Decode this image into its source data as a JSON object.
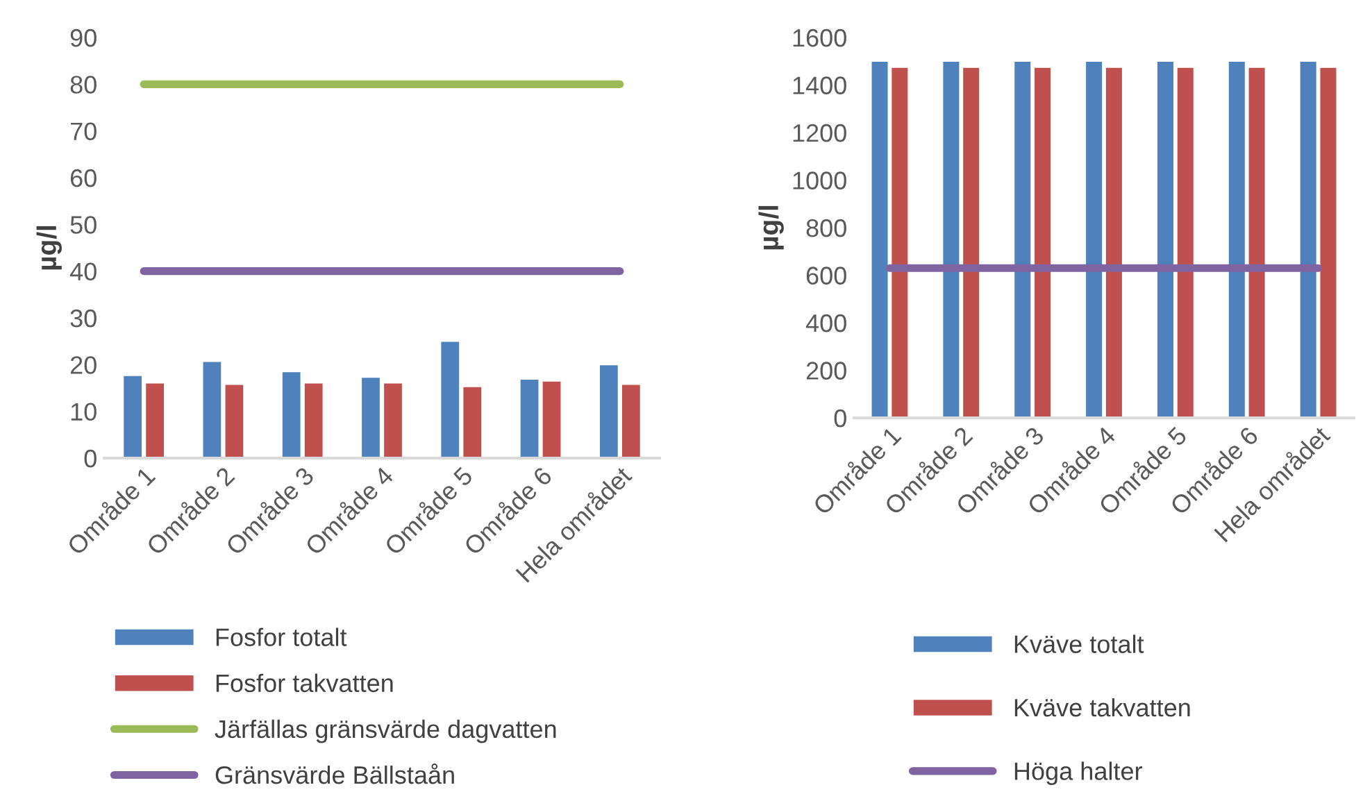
{
  "chart_data": [
    {
      "type": "bar",
      "ylabel": "µg/l",
      "categories": [
        "Område 1",
        "Område 2",
        "Område 3",
        "Område 4",
        "Område 5",
        "Område 6",
        "Hela området"
      ],
      "series": [
        {
          "name": "Fosfor totalt",
          "color": "#4f81bd",
          "values": [
            17.7,
            20.7,
            18.5,
            17.3,
            25,
            16.9,
            20
          ]
        },
        {
          "name": "Fosfor takvatten",
          "color": "#c0504d",
          "values": [
            16.1,
            15.8,
            16.1,
            16.1,
            15.3,
            16.5,
            15.8
          ]
        },
        {
          "name": "Järfällas gränsvärde dagvatten",
          "type": "line",
          "color": "#9bbb59",
          "values": [
            80,
            80,
            80,
            80,
            80,
            80,
            80
          ]
        },
        {
          "name": "Gränsvärde Bällstaån",
          "type": "line",
          "color": "#8064a2",
          "values": [
            40,
            40,
            40,
            40,
            40,
            40,
            40
          ]
        }
      ],
      "ylim": [
        0,
        90
      ],
      "yticks": [
        0,
        10,
        20,
        30,
        40,
        50,
        60,
        70,
        80,
        90
      ],
      "grid": false,
      "legend": "bottom"
    },
    {
      "type": "bar",
      "ylabel": "µg/l",
      "categories": [
        "Område 1",
        "Område 2",
        "Område 3",
        "Område 4",
        "Område 5",
        "Område 6",
        "Hela området"
      ],
      "series": [
        {
          "name": "Kväve totalt",
          "color": "#4f81bd",
          "values": [
            1500,
            1500,
            1500,
            1500,
            1500,
            1500,
            1500
          ]
        },
        {
          "name": "Kväve takvatten",
          "color": "#c0504d",
          "values": [
            1475,
            1475,
            1475,
            1475,
            1475,
            1475,
            1475
          ]
        },
        {
          "name": "Höga halter",
          "type": "line",
          "color": "#8064a2",
          "values": [
            630,
            630,
            630,
            630,
            630,
            630,
            630
          ]
        }
      ],
      "ylim": [
        0,
        1600
      ],
      "yticks": [
        0,
        200,
        400,
        600,
        800,
        1000,
        1200,
        1400,
        1600
      ],
      "grid": false,
      "legend": "bottom"
    }
  ]
}
